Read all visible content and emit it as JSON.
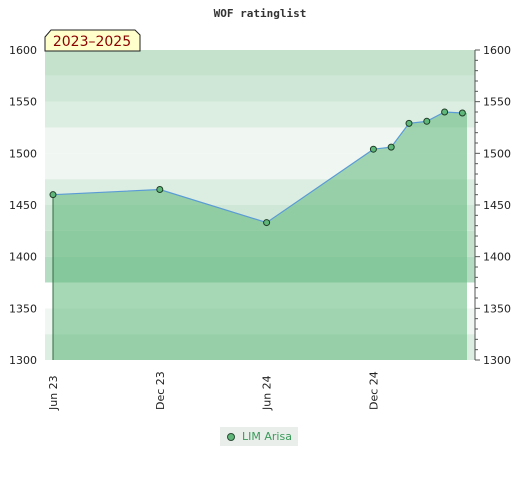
{
  "title": "WOF ratinglist",
  "period_badge": "2023–2025",
  "chart_data": {
    "type": "area",
    "title": "WOF ratinglist",
    "ylim": [
      1300,
      1600
    ],
    "yticks": [
      1300,
      1350,
      1400,
      1450,
      1500,
      1550,
      1600
    ],
    "xticks": [
      "Jun 23",
      "Dec 23",
      "Jun 24",
      "Dec 24"
    ],
    "grid": true,
    "legend_position": "bottom",
    "series": [
      {
        "name": "LIM Arisa",
        "color": "#5fb87a",
        "line_color": "#5b9bd5",
        "points": [
          {
            "x": "2023-06",
            "y": 1460
          },
          {
            "x": "2023-12",
            "y": 1465
          },
          {
            "x": "2024-06",
            "y": 1433
          },
          {
            "x": "2024-12",
            "y": 1504
          },
          {
            "x": "2025-01",
            "y": 1506
          },
          {
            "x": "2025-02",
            "y": 1529
          },
          {
            "x": "2025-03",
            "y": 1531
          },
          {
            "x": "2025-04",
            "y": 1540
          },
          {
            "x": "2025-05",
            "y": 1539
          }
        ]
      }
    ]
  }
}
